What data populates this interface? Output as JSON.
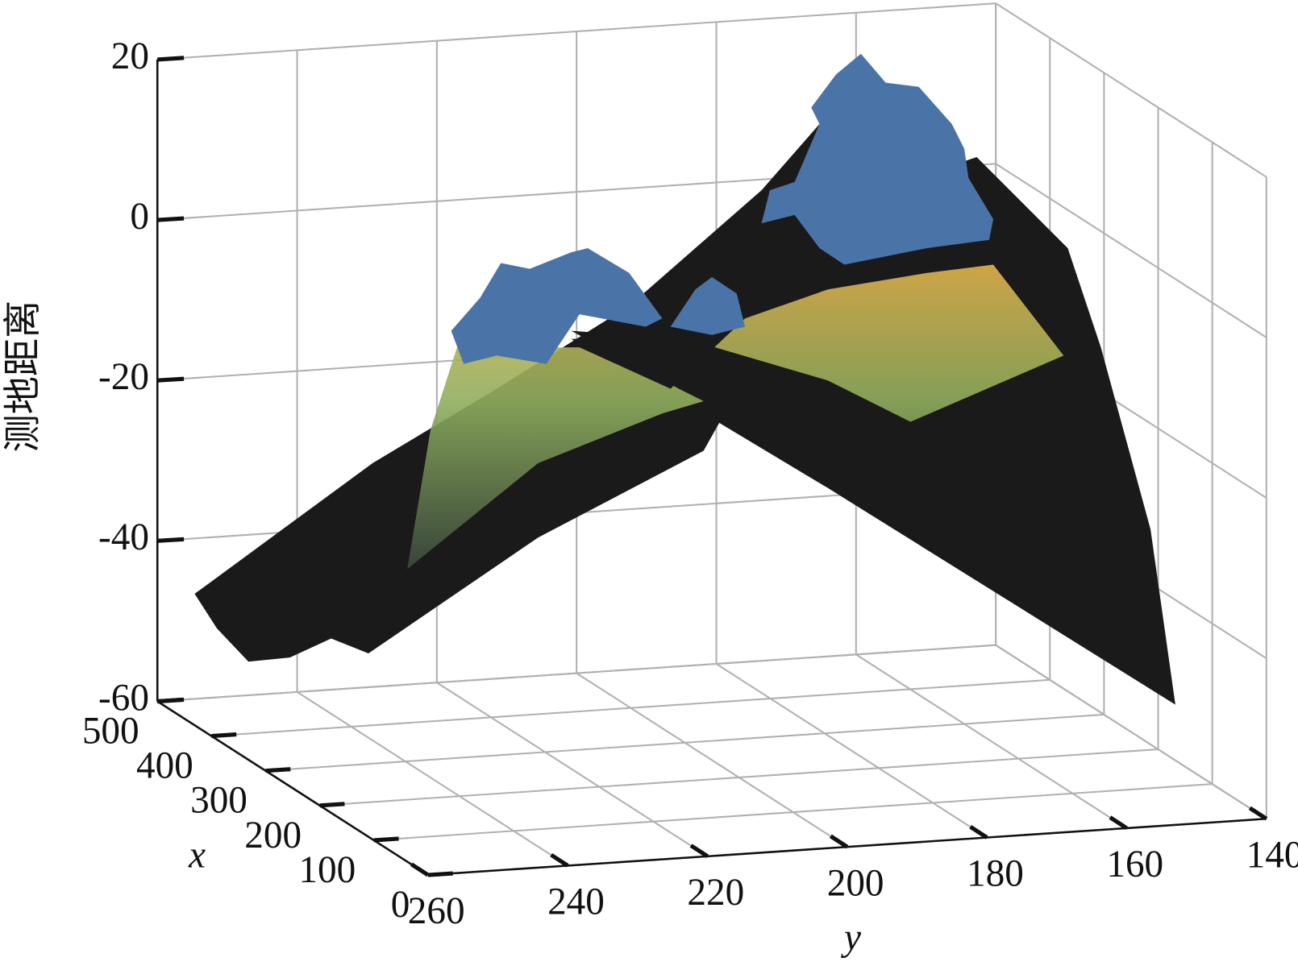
{
  "chart_data": {
    "type": "surface",
    "x_label": "x",
    "y_label": "y",
    "z_label": "测地距离",
    "xlim": [
      0,
      500
    ],
    "xticks": [
      0,
      100,
      200,
      300,
      400,
      500
    ],
    "ylim": [
      140,
      260
    ],
    "yticks": [
      140,
      160,
      180,
      200,
      220,
      240,
      260
    ],
    "zlim": [
      -60,
      20
    ],
    "zticks": [
      -60,
      -40,
      -20,
      0,
      20
    ],
    "grid": true
  }
}
